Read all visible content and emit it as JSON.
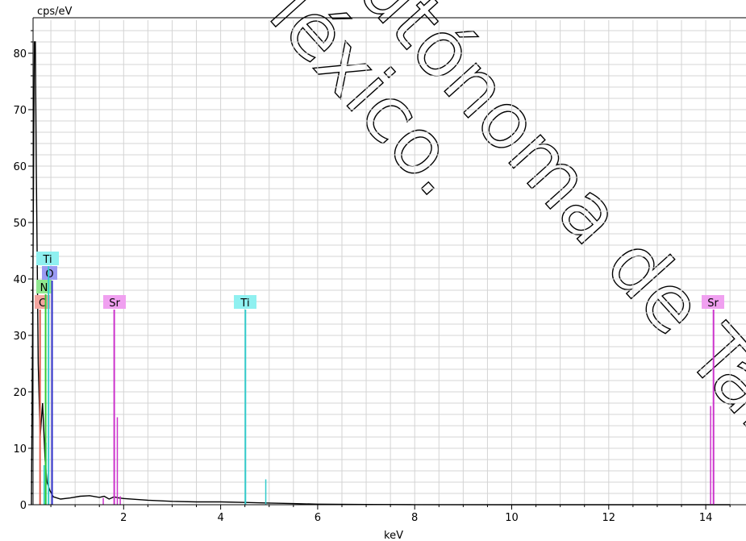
{
  "chart_data": {
    "type": "line",
    "title": "",
    "xlabel": "keV",
    "ylabel": "cps/eV",
    "xlim": [
      0,
      14.5
    ],
    "ylim": [
      0,
      85
    ],
    "x_ticks": [
      2,
      4,
      6,
      8,
      10,
      12,
      14
    ],
    "y_ticks": [
      0,
      10,
      20,
      30,
      40,
      50,
      60,
      70,
      80
    ],
    "grid": true,
    "series": [
      {
        "color": "#000000",
        "points": [
          [
            0.1,
            0
          ],
          [
            0.13,
            40
          ],
          [
            0.16,
            82
          ],
          [
            0.18,
            82
          ],
          [
            0.2,
            60
          ],
          [
            0.24,
            25
          ],
          [
            0.28,
            12
          ],
          [
            0.33,
            18
          ],
          [
            0.38,
            8
          ],
          [
            0.42,
            4
          ],
          [
            0.48,
            2.5
          ],
          [
            0.55,
            1.4
          ],
          [
            0.7,
            1.0
          ],
          [
            0.9,
            1.2
          ],
          [
            1.1,
            1.5
          ],
          [
            1.3,
            1.6
          ],
          [
            1.5,
            1.3
          ],
          [
            1.6,
            1.5
          ],
          [
            1.7,
            1.0
          ],
          [
            1.8,
            1.4
          ],
          [
            1.9,
            1.2
          ],
          [
            2.0,
            1.1
          ],
          [
            2.5,
            0.8
          ],
          [
            3.0,
            0.6
          ],
          [
            3.5,
            0.5
          ],
          [
            4.0,
            0.5
          ],
          [
            4.5,
            0.4
          ],
          [
            5.0,
            0.3
          ],
          [
            5.5,
            0.2
          ],
          [
            6.0,
            0.1
          ],
          [
            7.0,
            0.05
          ],
          [
            8.0,
            0.02
          ],
          [
            10.0,
            0.0
          ],
          [
            12.0,
            0.0
          ],
          [
            14.5,
            0.0
          ]
        ]
      }
    ],
    "peaks": [
      {
        "label": "C",
        "energy": 0.277,
        "height": 35,
        "color": "#e05a4c",
        "tag_bg": "#f4a6a0"
      },
      {
        "label": "N",
        "energy": 0.392,
        "height": 35,
        "color": "#33cc33",
        "tag_bg": "#8fe88f"
      },
      {
        "label": "O",
        "energy": 0.525,
        "height": 35,
        "color": "#3333cc",
        "tag_bg": "#9a9af2"
      },
      {
        "label": "Ti",
        "energy": 0.452,
        "height": 35,
        "color": "#33cccc",
        "tag_bg": "#8ff0f0"
      },
      {
        "label": "Sr",
        "energy": 1.806,
        "height": 35,
        "color": "#cc33cc",
        "tag_bg": "#f0a0f0"
      },
      {
        "label": "Ti",
        "energy": 4.51,
        "height": 35,
        "color": "#33cccc",
        "tag_bg": "#8ff0f0"
      },
      {
        "label": "Sr",
        "energy": 14.16,
        "height": 35,
        "color": "#cc33cc",
        "tag_bg": "#f0a0f0"
      }
    ],
    "minor_lines": [
      {
        "energy": 0.4,
        "height": 11,
        "color": "#33cccc"
      },
      {
        "energy": 0.36,
        "height": 7,
        "color": "#33cccc"
      },
      {
        "energy": 1.58,
        "height": 1.2,
        "color": "#cc33cc"
      },
      {
        "energy": 1.87,
        "height": 15.5,
        "color": "#cc33cc"
      },
      {
        "energy": 1.93,
        "height": 1.5,
        "color": "#cc33cc"
      },
      {
        "energy": 4.93,
        "height": 4.5,
        "color": "#33cccc"
      },
      {
        "energy": 14.1,
        "height": 17.5,
        "color": "#cc33cc"
      }
    ]
  }
}
